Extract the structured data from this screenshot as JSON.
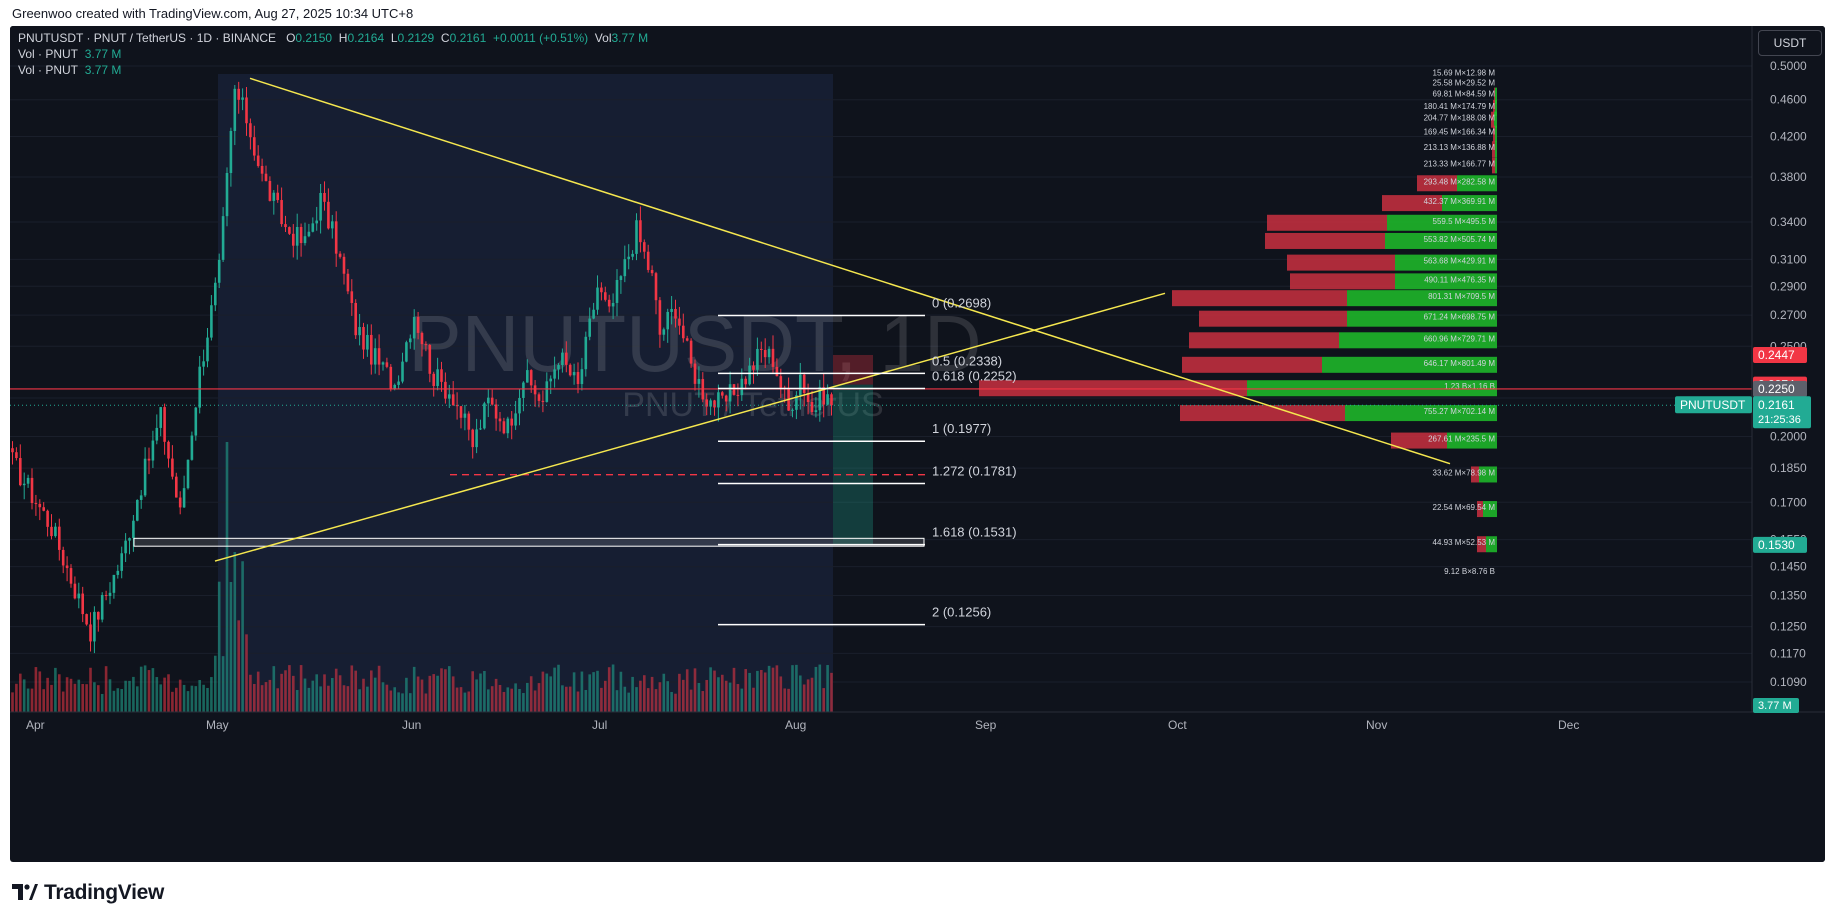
{
  "header": {
    "caption": "Greenwoo created with TradingView.com, Aug 27, 2025 10:34 UTC+8"
  },
  "legend": {
    "symbol": "PNUTUSDT · PNUT / TetherUS · 1D · BINANCE",
    "o_label": "O",
    "o_value": "0.2150",
    "h_label": "H",
    "h_value": "0.2164",
    "l_label": "L",
    "l_value": "0.2129",
    "c_label": "C",
    "c_value": "0.2161",
    "change": "+0.0011 (+0.51%)",
    "vol_label": "Vol",
    "vol_value": "3.77 M",
    "vol_lines": [
      {
        "label": "Vol · PNUT",
        "value": "3.77 M"
      },
      {
        "label": "Vol · PNUT",
        "value": "3.77 M"
      }
    ]
  },
  "currency_button": "USDT",
  "watermark": {
    "symbol": "PNUTUSDT, 1D",
    "pair": "PNUT / TetherUS"
  },
  "footer": {
    "brand": "TradingView"
  },
  "colors": {
    "up": "#22ab94",
    "down": "#f23645",
    "background": "#0f131c",
    "trendline": "#f5e74f",
    "fib": "#ffffff",
    "ref_line": "#f23645"
  },
  "chart_data": {
    "type": "candlestick",
    "timeframe": "1D",
    "y_axis_ticks": [
      "0.5000",
      "0.4600",
      "0.4200",
      "0.3800",
      "0.3400",
      "0.3100",
      "0.2900",
      "0.2700",
      "0.2500",
      "0.2200",
      "0.2000",
      "0.1850",
      "0.1700",
      "0.1550",
      "0.1450",
      "0.1350",
      "0.1250",
      "0.1170",
      "0.1090"
    ],
    "x_axis_ticks": [
      "Apr",
      "May",
      "Jun",
      "Jul",
      "Aug",
      "Sep",
      "Oct",
      "Nov",
      "Dec"
    ],
    "last_price": {
      "label": "PNUTUSDT",
      "value": "0.2161",
      "countdown": "21:25:36"
    },
    "price_labels": [
      {
        "value": "0.2447",
        "color": "#f23645"
      },
      {
        "value": "0.2274",
        "color": "#f23645"
      },
      {
        "value": "0.2250",
        "color": "#5d606b"
      },
      {
        "value": "0.1530",
        "color": "#22ab94"
      }
    ],
    "volume_label": "3.77 M",
    "fib_levels": [
      {
        "label": "0 (0.2698)",
        "price": 0.2698
      },
      {
        "label": "0.5 (0.2338)",
        "price": 0.2338
      },
      {
        "label": "0.618 (0.2252)",
        "price": 0.2252
      },
      {
        "label": "1 (0.1977)",
        "price": 0.1977
      },
      {
        "label": "1.272 (0.1781)",
        "price": 0.1781
      },
      {
        "label": "1.618 (0.1531)",
        "price": 0.1531
      },
      {
        "label": "2 (0.1256)",
        "price": 0.1256
      }
    ],
    "horizontal_line": 0.225,
    "dashed_support": 0.182,
    "support_zone": [
      0.1525,
      0.1555
    ],
    "volume_profile": [
      {
        "label": "15.69 M×12.98 M",
        "price": 0.492,
        "down": 0,
        "up": 0
      },
      {
        "label": "25.58 M×29.52 M",
        "price": 0.48,
        "down": 0,
        "up": 0
      },
      {
        "label": "69.81 M×84.59 M",
        "price": 0.467,
        "down": 1,
        "up": 2
      },
      {
        "label": "180.41 M×174.79 M",
        "price": 0.453,
        "down": 2,
        "up": 2
      },
      {
        "label": "204.77 M×188.08 M",
        "price": 0.44,
        "down": 3,
        "up": 3
      },
      {
        "label": "169.45 M×166.34 M",
        "price": 0.425,
        "down": 2,
        "up": 2
      },
      {
        "label": "213.13 M×136.88 M",
        "price": 0.409,
        "down": 3,
        "up": 2
      },
      {
        "label": "213.33 M×166.77 M",
        "price": 0.393,
        "down": 3,
        "up": 2
      },
      {
        "label": "293.48 M×282.58 M",
        "price": 0.376,
        "down": 40,
        "up": 40
      },
      {
        "label": "432.37 M×369.91 M",
        "price": 0.358,
        "down": 60,
        "up": 55
      },
      {
        "label": "559.5 M×495.5 M",
        "price": 0.341,
        "down": 120,
        "up": 110
      },
      {
        "label": "553.82 M×505.74 M",
        "price": 0.326,
        "down": 120,
        "up": 112
      },
      {
        "label": "563.68 M×429.91 M",
        "price": 0.309,
        "down": 108,
        "up": 102
      },
      {
        "label": "490.11 M×476.35 M",
        "price": 0.295,
        "down": 105,
        "up": 102
      },
      {
        "label": "801.31 M×709.5 M",
        "price": 0.283,
        "down": 175,
        "up": 150
      },
      {
        "label": "671.24 M×698.75 M",
        "price": 0.269,
        "down": 148,
        "up": 150
      },
      {
        "label": "660.96 M×729.71 M",
        "price": 0.255,
        "down": 150,
        "up": 158
      },
      {
        "label": "646.17 M×801.49 M",
        "price": 0.24,
        "down": 140,
        "up": 175
      },
      {
        "label": "1.23 B×1.16 B",
        "price": 0.2265,
        "down": 268,
        "up": 250
      },
      {
        "label": "755.27 M×702.14 M",
        "price": 0.213,
        "down": 165,
        "up": 152
      },
      {
        "label": "267.61 M×235.5 M",
        "price": 0.199,
        "down": 56,
        "up": 50
      },
      {
        "label": "33.62 M×78.98 M",
        "price": 0.183,
        "down": 8,
        "up": 18
      },
      {
        "label": "22.54 M×69.54 M",
        "price": 0.168,
        "down": 6,
        "up": 14
      },
      {
        "label": "44.93 M×52.53 M",
        "price": 0.154,
        "down": 9,
        "up": 11
      },
      {
        "label": "9.12 B×8.76 B",
        "price": 0.1435,
        "down": 0,
        "up": 0
      }
    ]
  }
}
